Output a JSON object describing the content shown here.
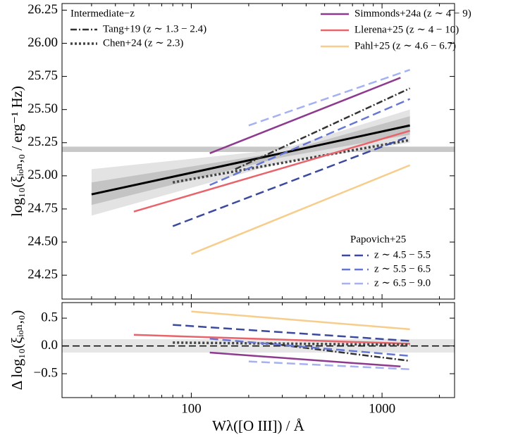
{
  "chart_data": [
    {
      "type": "line",
      "xlog": true,
      "xlim": [
        21,
        2400
      ],
      "ylim": [
        24.07,
        26.3
      ],
      "xticks": [
        100,
        1000
      ],
      "xminorticks": [
        30,
        40,
        50,
        60,
        70,
        80,
        90,
        200,
        300,
        400,
        500,
        600,
        700,
        800,
        900,
        2000
      ],
      "yticks": [
        24.25,
        {
          "value": 24.5,
          "label": "24.50"
        },
        24.75,
        {
          "value": 25,
          "label": "25.00"
        },
        25.25,
        {
          "value": 25.5,
          "label": "25.50"
        },
        25.75,
        {
          "value": 26,
          "label": "26.00"
        },
        26.25
      ],
      "ylabel": "log₁₀(ξᵢₒₙ,₀ / erg⁻¹ Hz)",
      "hbands": [
        {
          "range": [
            25.18,
            25.22
          ],
          "color": "#c8c8c8"
        }
      ],
      "bands": [
        {
          "color": "#e3e3e3",
          "x": [
            30,
            300,
            1400
          ],
          "lower": [
            24.7,
            25.1,
            25.25
          ],
          "upper": [
            25.05,
            25.2,
            25.5
          ]
        },
        {
          "color": "#c4c4c4",
          "x": [
            30,
            300,
            1400
          ],
          "lower": [
            24.78,
            25.14,
            25.31
          ],
          "upper": [
            24.95,
            25.18,
            25.45
          ]
        }
      ],
      "series": [
        {
          "color": "#000000",
          "dash": "",
          "width": 3,
          "x": [
            30,
            1400
          ],
          "values": [
            24.86,
            25.38
          ]
        },
        {
          "name": "Tang+19 (z ∼ 1.3 − 2.4)",
          "color": "#333333",
          "dash": "9,3,2,3",
          "width": 2.5,
          "x": [
            170,
            1400
          ],
          "values": [
            25.05,
            25.66
          ]
        },
        {
          "name": "Chen+24 (z ∼ 2.3)",
          "color": "#444444",
          "dash": "3,3",
          "width": 3.5,
          "x": [
            80,
            1400
          ],
          "values": [
            24.95,
            25.27
          ]
        },
        {
          "name": "Simmonds+24a (z ∼ 4 − 9)",
          "color": "#8e3a8e",
          "dash": "",
          "width": 2.5,
          "x": [
            125,
            1250
          ],
          "values": [
            25.17,
            25.74
          ]
        },
        {
          "name": "Llerena+25 (z ∼ 4 − 10)",
          "color": "#e8636a",
          "dash": "",
          "width": 2.5,
          "x": [
            50,
            1400
          ],
          "values": [
            24.73,
            25.34
          ]
        },
        {
          "name": "Pahl+25 (z ∼ 4.6 − 6.7)",
          "color": "#f7cd8c",
          "dash": "",
          "width": 2.5,
          "x": [
            100,
            1400
          ],
          "values": [
            24.41,
            25.08
          ]
        },
        {
          "name": "z ∼ 4.5 − 5.5",
          "color": "#3b4a9e",
          "dash": "12,6",
          "width": 2.5,
          "x": [
            80,
            1400
          ],
          "values": [
            24.62,
            25.3
          ]
        },
        {
          "name": "z ∼ 5.5 − 6.5",
          "color": "#6676d4",
          "dash": "12,6",
          "width": 2.5,
          "x": [
            125,
            1400
          ],
          "values": [
            24.93,
            25.58
          ]
        },
        {
          "name": "z ∼ 6.5 − 9.0",
          "color": "#a5b1f0",
          "dash": "12,6",
          "width": 2.5,
          "x": [
            200,
            1400
          ],
          "values": [
            25.38,
            25.8
          ]
        }
      ],
      "legends": [
        {
          "title": "Intermediate−z",
          "corner": "upper left",
          "entries": [
            1,
            2
          ]
        },
        {
          "corner": "upper right",
          "entries": [
            3,
            4,
            5
          ]
        },
        {
          "title": "Papovich+25",
          "corner": "lower right",
          "entries": [
            6,
            7,
            8
          ]
        }
      ]
    },
    {
      "type": "line",
      "xlog": true,
      "xlim": [
        21,
        2400
      ],
      "ylim": [
        -0.93,
        0.78
      ],
      "xticks": [
        100,
        1000
      ],
      "xminorticks": [
        30,
        40,
        50,
        60,
        70,
        80,
        90,
        200,
        300,
        400,
        500,
        600,
        700,
        800,
        900,
        2000
      ],
      "yticks": [
        {
          "value": -0.5,
          "label": "−0.5"
        },
        {
          "value": 0,
          "label": "0.0"
        },
        0.5
      ],
      "ylabel": "Δ log₁₀(ξᵢₒₙ,₀)",
      "xlabel": "Wλ([O III]) / Å",
      "hbands": [
        {
          "range": [
            -0.12,
            0.12
          ],
          "color": "#e6e6e6"
        }
      ],
      "hlines": [
        {
          "value": 0,
          "color": "#000000",
          "dash": "10,5"
        }
      ],
      "series": [
        {
          "color": "#f7cd8c",
          "dash": "",
          "width": 2.5,
          "x": [
            100,
            1400
          ],
          "values": [
            0.62,
            0.3
          ]
        },
        {
          "color": "#3b4a9e",
          "dash": "12,6",
          "width": 2.5,
          "x": [
            80,
            1400
          ],
          "values": [
            0.38,
            0.09
          ]
        },
        {
          "color": "#e8636a",
          "dash": "",
          "width": 2.5,
          "x": [
            50,
            1400
          ],
          "values": [
            0.2,
            0.04
          ]
        },
        {
          "color": "#444444",
          "dash": "3,3",
          "width": 3.5,
          "x": [
            80,
            1400
          ],
          "values": [
            0.06,
            0.02
          ]
        },
        {
          "color": "#333333",
          "dash": "9,3,2,3",
          "width": 2.5,
          "x": [
            250,
            1400
          ],
          "values": [
            0.05,
            -0.27
          ]
        },
        {
          "color": "#6676d4",
          "dash": "12,6",
          "width": 2.5,
          "x": [
            125,
            1400
          ],
          "values": [
            0.13,
            -0.18
          ]
        },
        {
          "color": "#8e3a8e",
          "dash": "",
          "width": 2.5,
          "x": [
            125,
            1250
          ],
          "values": [
            -0.12,
            -0.37
          ]
        },
        {
          "color": "#a5b1f0",
          "dash": "12,6",
          "width": 2.5,
          "x": [
            200,
            1400
          ],
          "values": [
            -0.28,
            -0.42
          ]
        }
      ]
    }
  ]
}
